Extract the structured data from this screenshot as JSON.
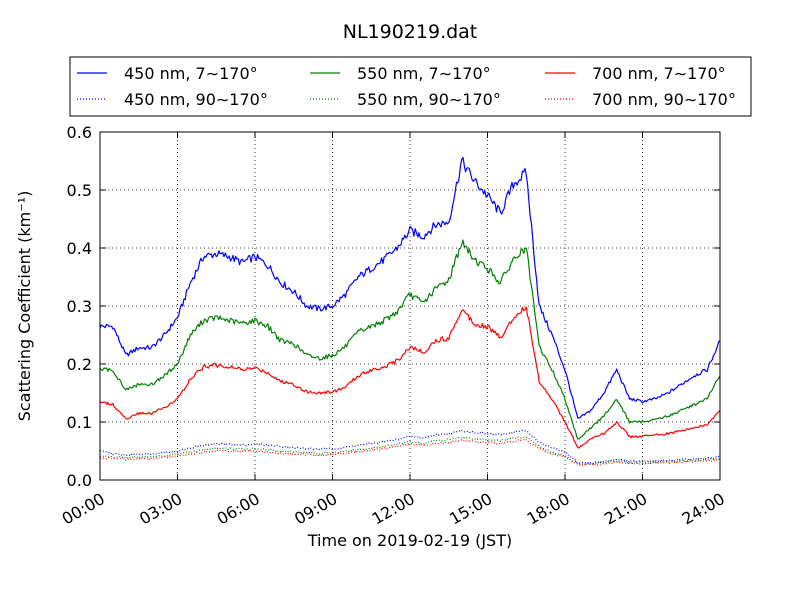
{
  "chart_data": {
    "type": "line",
    "title": "NL190219.dat",
    "xlabel": "Time on 2019-02-19 (JST)",
    "ylabel": "Scattering Coefficient (km⁻¹)",
    "xlim": [
      "00:00",
      "24:00"
    ],
    "ylim": [
      0,
      0.6
    ],
    "grid": true,
    "legend_position": "top",
    "x_ticks": [
      "00:00",
      "03:00",
      "06:00",
      "09:00",
      "12:00",
      "15:00",
      "18:00",
      "21:00",
      "24:00"
    ],
    "y_ticks": [
      "0.0",
      "0.1",
      "0.2",
      "0.3",
      "0.4",
      "0.5",
      "0.6"
    ],
    "x": [
      "00:00",
      "00:30",
      "01:00",
      "01:30",
      "02:00",
      "02:30",
      "03:00",
      "03:30",
      "04:00",
      "04:30",
      "05:00",
      "05:30",
      "06:00",
      "06:30",
      "07:00",
      "07:30",
      "08:00",
      "08:30",
      "09:00",
      "09:30",
      "10:00",
      "10:30",
      "11:00",
      "11:30",
      "12:00",
      "12:30",
      "13:00",
      "13:30",
      "14:00",
      "14:30",
      "15:00",
      "15:30",
      "16:00",
      "16:30",
      "17:00",
      "17:30",
      "18:00",
      "18:30",
      "19:00",
      "19:30",
      "20:00",
      "20:30",
      "21:00",
      "21:30",
      "22:00",
      "22:30",
      "23:00",
      "23:30",
      "24:00"
    ],
    "series": [
      {
        "name": "450 nm, 7∼170°",
        "color": "#0000ff",
        "style": "solid",
        "values": [
          0.265,
          0.265,
          0.215,
          0.228,
          0.228,
          0.25,
          0.28,
          0.34,
          0.385,
          0.39,
          0.385,
          0.375,
          0.385,
          0.37,
          0.34,
          0.325,
          0.3,
          0.295,
          0.3,
          0.32,
          0.35,
          0.365,
          0.38,
          0.4,
          0.43,
          0.42,
          0.44,
          0.445,
          0.55,
          0.515,
          0.49,
          0.46,
          0.51,
          0.53,
          0.3,
          0.25,
          0.19,
          0.105,
          0.12,
          0.15,
          0.19,
          0.14,
          0.135,
          0.14,
          0.15,
          0.165,
          0.18,
          0.19,
          0.24
        ]
      },
      {
        "name": "450 nm, 90∼170°",
        "color": "#0000ff",
        "style": "dotted",
        "values": [
          0.05,
          0.045,
          0.043,
          0.045,
          0.045,
          0.048,
          0.05,
          0.055,
          0.06,
          0.062,
          0.062,
          0.06,
          0.062,
          0.06,
          0.058,
          0.056,
          0.054,
          0.053,
          0.054,
          0.056,
          0.06,
          0.063,
          0.066,
          0.07,
          0.075,
          0.072,
          0.078,
          0.08,
          0.085,
          0.082,
          0.08,
          0.078,
          0.083,
          0.085,
          0.065,
          0.055,
          0.048,
          0.03,
          0.03,
          0.032,
          0.036,
          0.032,
          0.032,
          0.033,
          0.034,
          0.035,
          0.036,
          0.037,
          0.04
        ]
      },
      {
        "name": "550 nm, 7∼170°",
        "color": "#008000",
        "style": "solid",
        "values": [
          0.19,
          0.19,
          0.155,
          0.165,
          0.165,
          0.18,
          0.2,
          0.25,
          0.275,
          0.28,
          0.275,
          0.27,
          0.275,
          0.265,
          0.24,
          0.235,
          0.215,
          0.21,
          0.215,
          0.23,
          0.255,
          0.265,
          0.275,
          0.29,
          0.32,
          0.305,
          0.33,
          0.345,
          0.41,
          0.38,
          0.365,
          0.34,
          0.38,
          0.4,
          0.23,
          0.19,
          0.14,
          0.07,
          0.09,
          0.11,
          0.14,
          0.1,
          0.1,
          0.105,
          0.11,
          0.12,
          0.13,
          0.14,
          0.18
        ]
      },
      {
        "name": "550 nm, 90∼170°",
        "color": "#008000",
        "style": "dotted",
        "values": [
          0.042,
          0.04,
          0.038,
          0.04,
          0.04,
          0.042,
          0.045,
          0.048,
          0.052,
          0.054,
          0.054,
          0.053,
          0.054,
          0.052,
          0.05,
          0.049,
          0.047,
          0.046,
          0.047,
          0.049,
          0.052,
          0.055,
          0.058,
          0.062,
          0.066,
          0.063,
          0.068,
          0.07,
          0.074,
          0.071,
          0.07,
          0.068,
          0.072,
          0.074,
          0.058,
          0.048,
          0.042,
          0.028,
          0.028,
          0.03,
          0.033,
          0.03,
          0.03,
          0.031,
          0.032,
          0.033,
          0.034,
          0.035,
          0.037
        ]
      },
      {
        "name": "700 nm, 7∼170°",
        "color": "#ff0000",
        "style": "solid",
        "values": [
          0.135,
          0.13,
          0.105,
          0.115,
          0.115,
          0.125,
          0.14,
          0.175,
          0.195,
          0.198,
          0.195,
          0.19,
          0.193,
          0.185,
          0.17,
          0.165,
          0.152,
          0.15,
          0.152,
          0.16,
          0.18,
          0.19,
          0.195,
          0.205,
          0.23,
          0.22,
          0.24,
          0.245,
          0.295,
          0.27,
          0.265,
          0.245,
          0.28,
          0.3,
          0.17,
          0.14,
          0.1,
          0.055,
          0.07,
          0.08,
          0.1,
          0.075,
          0.075,
          0.078,
          0.08,
          0.085,
          0.09,
          0.095,
          0.12
        ]
      },
      {
        "name": "700 nm, 90∼170°",
        "color": "#ff0000",
        "style": "dotted",
        "values": [
          0.038,
          0.037,
          0.035,
          0.037,
          0.037,
          0.039,
          0.042,
          0.045,
          0.048,
          0.05,
          0.05,
          0.049,
          0.05,
          0.048,
          0.046,
          0.045,
          0.044,
          0.043,
          0.044,
          0.046,
          0.049,
          0.051,
          0.054,
          0.058,
          0.062,
          0.059,
          0.063,
          0.065,
          0.069,
          0.066,
          0.065,
          0.063,
          0.067,
          0.069,
          0.054,
          0.045,
          0.04,
          0.026,
          0.026,
          0.028,
          0.031,
          0.028,
          0.028,
          0.029,
          0.03,
          0.031,
          0.032,
          0.033,
          0.035
        ]
      }
    ]
  }
}
